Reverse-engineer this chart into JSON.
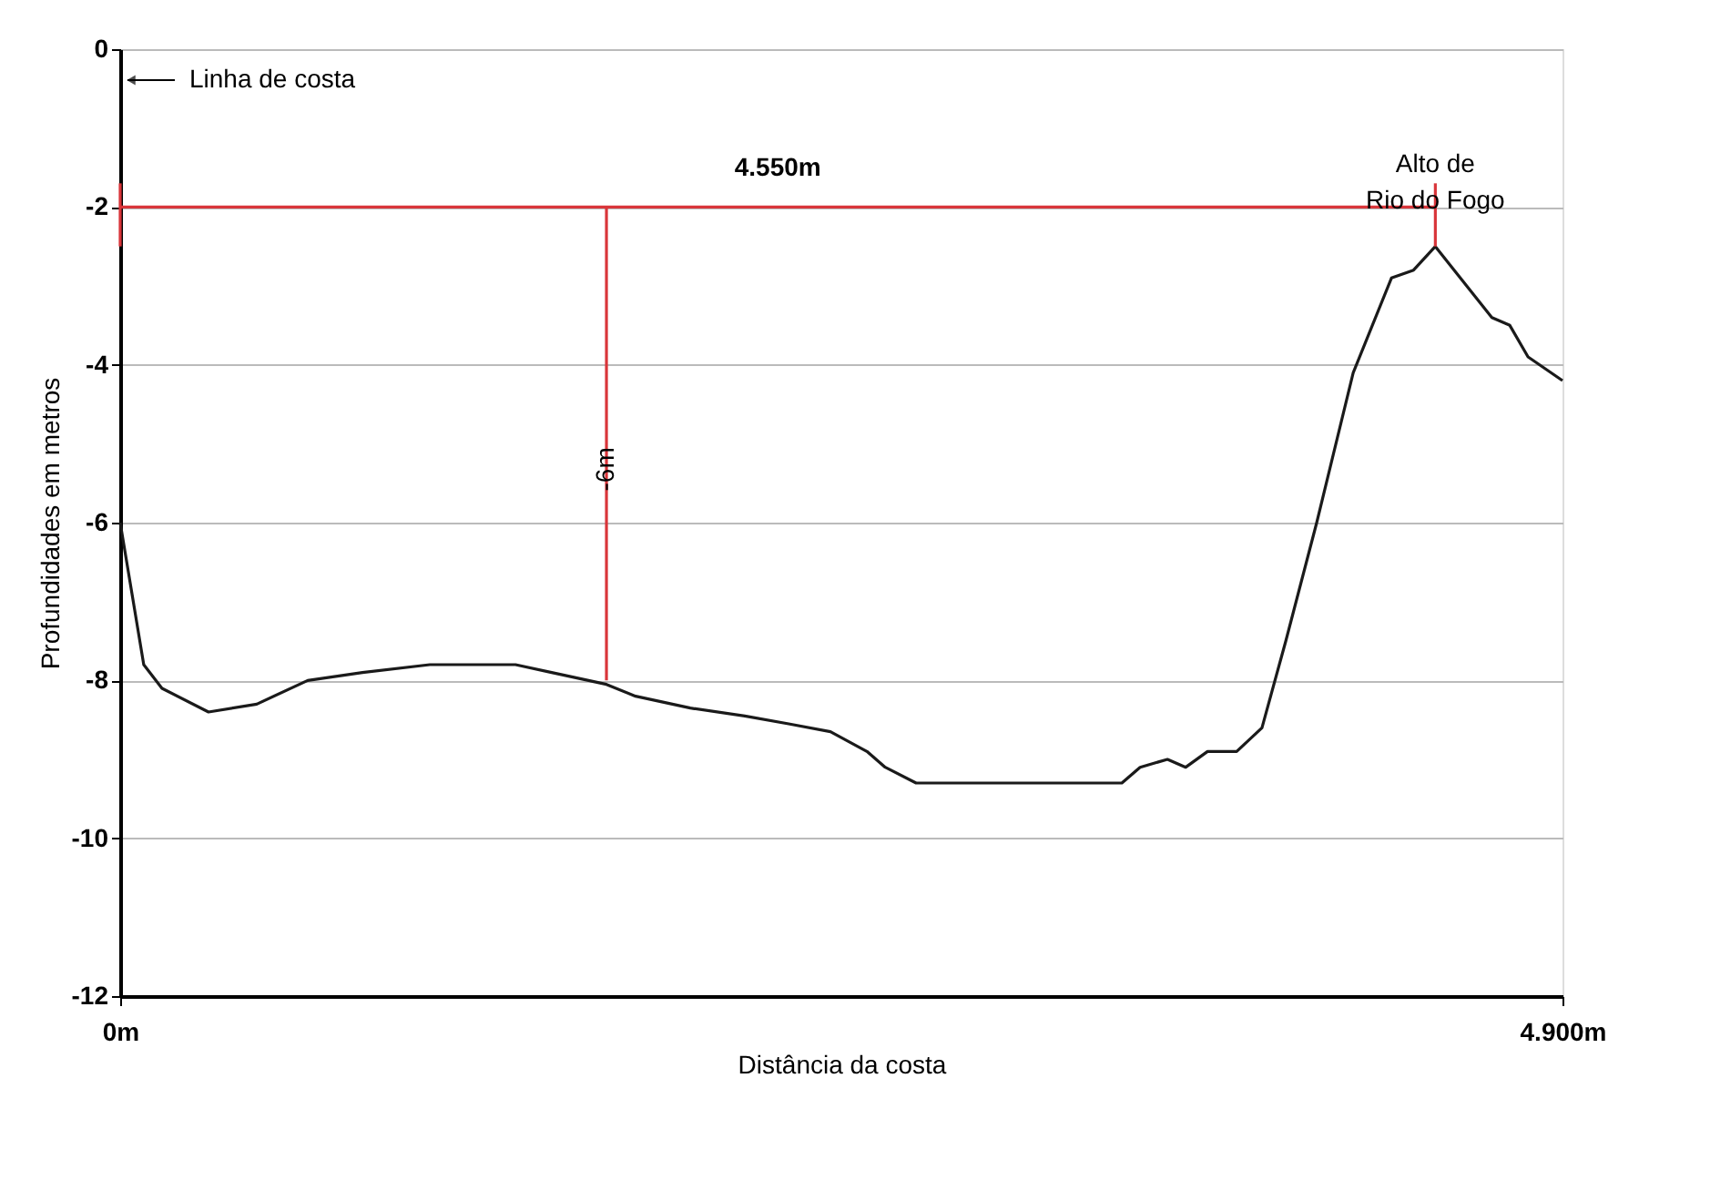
{
  "chart_data": {
    "type": "line",
    "xlabel": "Distância da costa",
    "ylabel": "Profundidades em metros",
    "xlim": [
      0,
      4.9
    ],
    "xticks": [
      {
        "value": 0,
        "label": "0m"
      },
      {
        "value": 4.9,
        "label": "4.900m"
      }
    ],
    "ylim": [
      -12,
      0
    ],
    "yticks": [
      -12,
      -10,
      -8,
      -6,
      -4,
      -2,
      0
    ],
    "grid": "y",
    "legend": false,
    "marker": "none",
    "line_style": "solid",
    "series": [
      {
        "color": "#1a1a1a",
        "x": [
          0,
          0.08,
          0.142,
          0.3,
          0.464,
          0.637,
          0.823,
          1.052,
          1.343,
          1.466,
          1.652,
          1.751,
          1.937,
          2.122,
          2.271,
          2.413,
          2.537,
          2.599,
          2.704,
          3.403,
          3.465,
          3.558,
          3.62,
          3.694,
          3.793,
          3.879,
          3.96,
          4.065,
          4.189,
          4.319,
          4.394,
          4.468,
          4.66,
          4.721,
          4.783,
          4.9
        ],
        "values": [
          -6.0,
          -7.8,
          -8.1,
          -8.4,
          -8.3,
          -8.0,
          -7.9,
          -7.8,
          -7.8,
          -7.9,
          -8.05,
          -8.2,
          -8.35,
          -8.45,
          -8.55,
          -8.65,
          -8.9,
          -9.1,
          -9.3,
          -9.3,
          -9.1,
          -9.0,
          -9.1,
          -8.9,
          -8.9,
          -8.6,
          -7.5,
          -6.0,
          -4.1,
          -2.9,
          -2.8,
          -2.5,
          -3.4,
          -3.5,
          -3.9,
          -4.2
        ]
      },
      {
        "color": "#d9353a",
        "x": [
          0,
          4.468
        ],
        "values": [
          -2,
          -2
        ]
      },
      {
        "color": "#d9353a",
        "x": [
          1.652,
          1.652
        ],
        "values": [
          -2,
          -8
        ]
      },
      {
        "color": "#d9353a",
        "x": [
          0,
          0
        ],
        "values": [
          -1.7,
          -2.5
        ]
      },
      {
        "color": "#d9353a",
        "x": [
          4.468,
          4.468
        ],
        "values": [
          -1.7,
          -2.5
        ]
      }
    ],
    "annotations": [
      "Linha de costa",
      {
        "text": "4.550m",
        "x": 2.234,
        "y": -2
      },
      {
        "text": "-6m",
        "x": 1.652,
        "y": -5
      },
      {
        "text": "Alto de\nRio do Fogo",
        "x": 4.468,
        "y": -2
      }
    ]
  }
}
